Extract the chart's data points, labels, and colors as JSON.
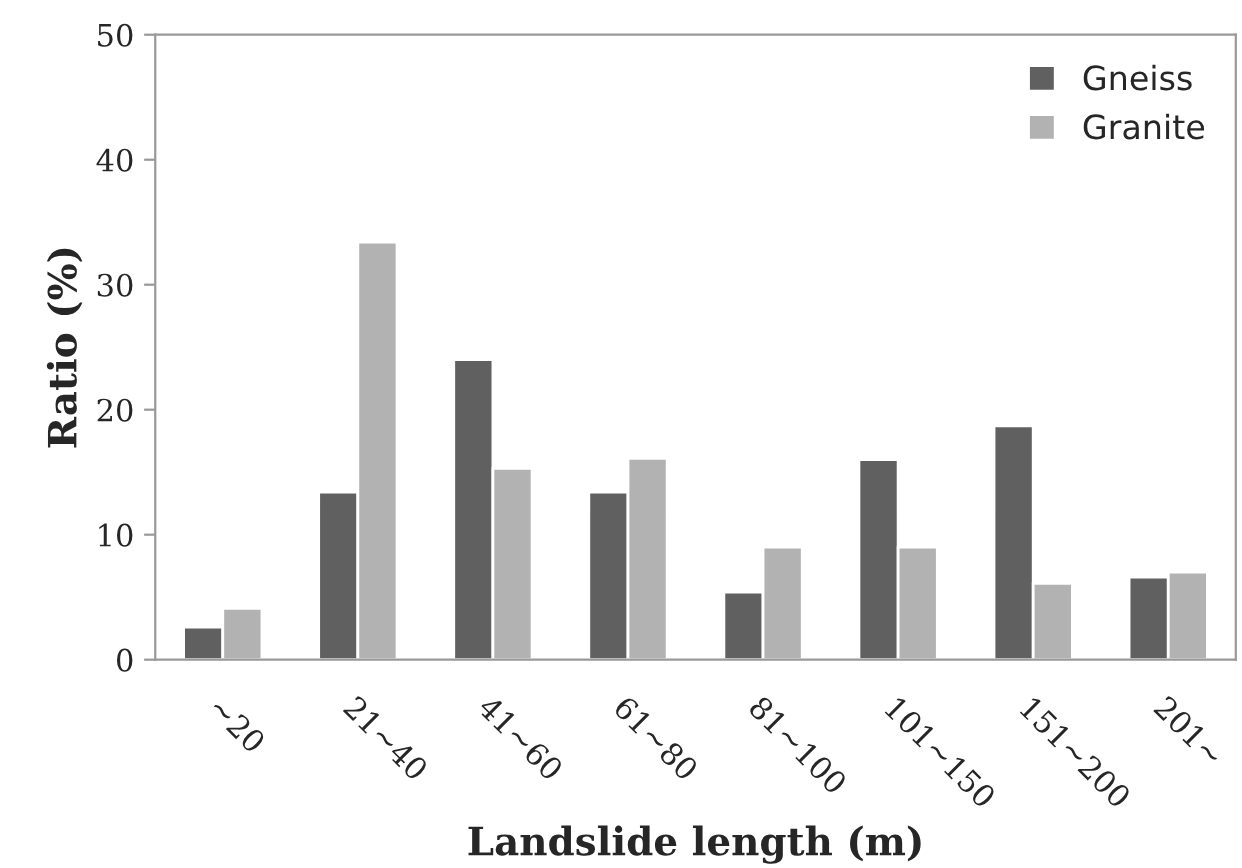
{
  "chart_data": {
    "type": "bar",
    "xlabel": "Landslide length (m)",
    "ylabel": "Ratio (%)",
    "categories": [
      "~20",
      "21~40",
      "41~60",
      "61~80",
      "81~100",
      "101~150",
      "151~200",
      "201~"
    ],
    "series": [
      {
        "name": "Gneiss",
        "color": "#606060",
        "values": [
          2.6,
          13.4,
          24.0,
          13.4,
          5.4,
          16.0,
          18.7,
          6.6
        ]
      },
      {
        "name": "Granite",
        "color": "#b2b2b2",
        "values": [
          4.1,
          33.4,
          15.3,
          16.1,
          9.0,
          9.0,
          6.1,
          7.0
        ]
      }
    ],
    "ylim": [
      0,
      50
    ],
    "yticks": [
      0,
      10,
      20,
      30,
      40,
      50
    ],
    "grid": false,
    "legend": "top right"
  }
}
